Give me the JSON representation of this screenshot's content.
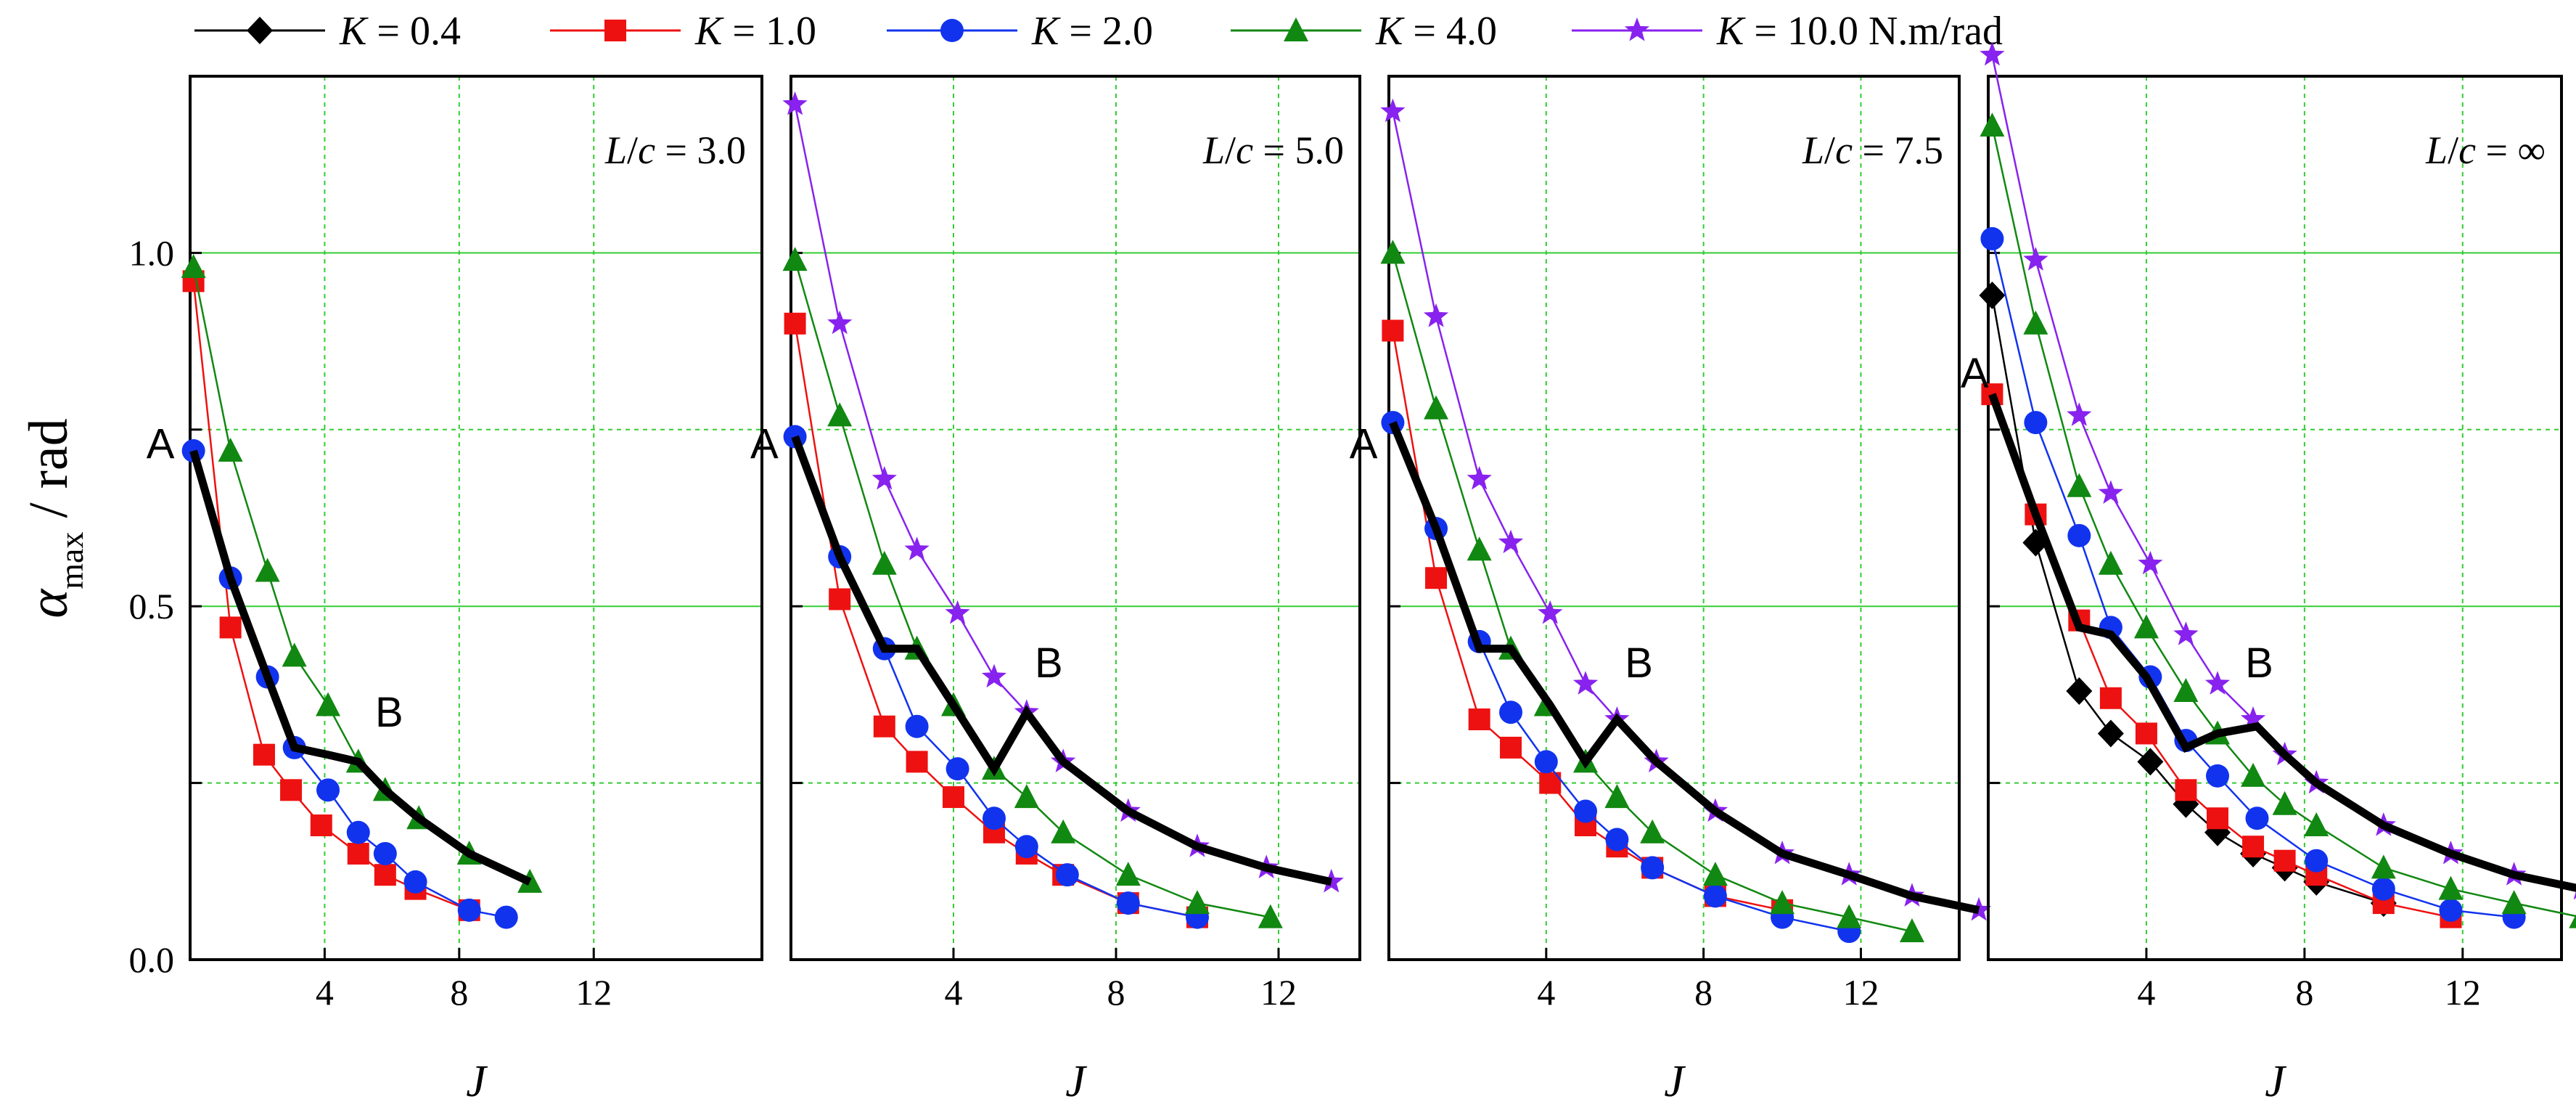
{
  "chart_data": {
    "type": "line",
    "ylabel": {
      "symbol": "α",
      "subscript": "max",
      "unit": " / rad"
    },
    "ylim": [
      0,
      1.25
    ],
    "yticks": [
      0.0,
      0.5,
      1.0
    ],
    "grid": true,
    "legend_position": "top",
    "legend": [
      {
        "series": "K0.4",
        "label": "K = 0.4",
        "color": "#000000",
        "marker": "diamond"
      },
      {
        "series": "K1.0",
        "label": "K = 1.0",
        "color": "#ee1111",
        "marker": "square"
      },
      {
        "series": "K2.0",
        "label": "K = 2.0",
        "color": "#1133ee",
        "marker": "circle"
      },
      {
        "series": "K4.0",
        "label": "K = 4.0",
        "color": "#118811",
        "marker": "triangle"
      },
      {
        "series": "K10.0",
        "label": "K = 10.0 N.m/rad",
        "color": "#8822ee",
        "marker": "star"
      }
    ],
    "panels": [
      {
        "annotation": "L/c = 3.0",
        "xlabel": "J",
        "xlim": [
          0,
          17
        ],
        "xticks": [
          4,
          8,
          12
        ],
        "series": [
          {
            "key": "K1.0",
            "x": [
              0.1,
              1.2,
              2.2,
              3.0,
              3.9,
              5.0,
              5.8,
              6.7,
              8.3
            ],
            "y": [
              0.96,
              0.47,
              0.29,
              0.24,
              0.19,
              0.15,
              0.12,
              0.1,
              0.07
            ]
          },
          {
            "key": "K2.0",
            "x": [
              0.1,
              1.2,
              2.3,
              3.1,
              4.1,
              5.0,
              5.8,
              6.7,
              8.3,
              9.4
            ],
            "y": [
              0.72,
              0.54,
              0.4,
              0.3,
              0.24,
              0.18,
              0.15,
              0.11,
              0.07,
              0.06
            ]
          },
          {
            "key": "K4.0",
            "x": [
              0.1,
              1.2,
              2.3,
              3.1,
              4.1,
              5.0,
              5.8,
              6.8,
              8.3,
              10.1
            ],
            "y": [
              0.98,
              0.72,
              0.55,
              0.43,
              0.36,
              0.28,
              0.24,
              0.2,
              0.15,
              0.11
            ]
          }
        ],
        "path": {
          "x": [
            0.1,
            1.2,
            2.3,
            3.1,
            4.1,
            5.0,
            5.8,
            6.8,
            8.3,
            10.1
          ],
          "y": [
            0.72,
            0.54,
            0.4,
            0.3,
            0.29,
            0.28,
            0.24,
            0.2,
            0.15,
            0.11
          ]
        },
        "point_labels": [
          {
            "text": "A",
            "x": -1.3,
            "y": 0.73
          },
          {
            "text": "B",
            "x": 5.5,
            "y": 0.35
          }
        ]
      },
      {
        "annotation": "L/c = 5.0",
        "xlabel": "J",
        "xlim": [
          0,
          14
        ],
        "xticks": [
          4,
          8,
          12
        ],
        "series": [
          {
            "key": "K1.0",
            "x": [
              0.1,
              1.2,
              2.3,
              3.1,
              4.0,
              5.0,
              5.8,
              6.7,
              8.3,
              10.0
            ],
            "y": [
              0.9,
              0.51,
              0.33,
              0.28,
              0.23,
              0.18,
              0.15,
              0.12,
              0.08,
              0.06
            ]
          },
          {
            "key": "K2.0",
            "x": [
              0.1,
              1.2,
              2.3,
              3.1,
              4.1,
              5.0,
              5.8,
              6.8,
              8.3,
              10.0
            ],
            "y": [
              0.74,
              0.57,
              0.44,
              0.33,
              0.27,
              0.2,
              0.16,
              0.12,
              0.08,
              0.06
            ]
          },
          {
            "key": "K4.0",
            "x": [
              0.1,
              1.2,
              2.3,
              3.1,
              4.0,
              5.0,
              5.8,
              6.7,
              8.3,
              10.0,
              11.8
            ],
            "y": [
              0.99,
              0.77,
              0.56,
              0.44,
              0.36,
              0.27,
              0.23,
              0.18,
              0.12,
              0.08,
              0.06
            ]
          },
          {
            "key": "K10.0",
            "x": [
              0.1,
              1.2,
              2.3,
              3.1,
              4.1,
              5.0,
              5.8,
              6.7,
              8.3,
              10.0,
              11.7,
              13.3
            ],
            "y": [
              1.21,
              0.9,
              0.68,
              0.58,
              0.49,
              0.4,
              0.35,
              0.28,
              0.21,
              0.16,
              0.13,
              0.11
            ]
          }
        ],
        "path": {
          "x": [
            0.1,
            1.2,
            2.3,
            3.1,
            4.0,
            5.0,
            5.8,
            6.7,
            8.3,
            10.0,
            11.7,
            13.3
          ],
          "y": [
            0.74,
            0.57,
            0.44,
            0.44,
            0.36,
            0.27,
            0.35,
            0.28,
            0.21,
            0.16,
            0.13,
            0.11
          ]
        },
        "point_labels": [
          {
            "text": "A",
            "x": -1.0,
            "y": 0.73
          },
          {
            "text": "B",
            "x": 6.0,
            "y": 0.42
          }
        ]
      },
      {
        "annotation": "L/c = 7.5",
        "xlabel": "J",
        "xlim": [
          0,
          14.5
        ],
        "xticks": [
          4,
          8,
          12
        ],
        "series": [
          {
            "key": "K1.0",
            "x": [
              0.1,
              1.2,
              2.3,
              3.1,
              4.1,
              5.0,
              5.8,
              6.7,
              8.3,
              10.0
            ],
            "y": [
              0.89,
              0.54,
              0.34,
              0.3,
              0.25,
              0.19,
              0.16,
              0.13,
              0.09,
              0.07
            ]
          },
          {
            "key": "K2.0",
            "x": [
              0.1,
              1.2,
              2.3,
              3.1,
              4.0,
              5.0,
              5.8,
              6.7,
              8.3,
              10.0,
              11.7
            ],
            "y": [
              0.76,
              0.61,
              0.45,
              0.35,
              0.28,
              0.21,
              0.17,
              0.13,
              0.09,
              0.06,
              0.04
            ]
          },
          {
            "key": "K4.0",
            "x": [
              0.1,
              1.2,
              2.3,
              3.1,
              4.0,
              5.0,
              5.8,
              6.7,
              8.3,
              10.0,
              11.7,
              13.3
            ],
            "y": [
              1.0,
              0.78,
              0.58,
              0.44,
              0.36,
              0.28,
              0.23,
              0.18,
              0.12,
              0.08,
              0.06,
              0.04
            ]
          },
          {
            "key": "K10.0",
            "x": [
              0.1,
              1.2,
              2.3,
              3.1,
              4.1,
              5.0,
              5.8,
              6.8,
              8.3,
              10.0,
              11.7,
              13.3,
              15.0
            ],
            "y": [
              1.2,
              0.91,
              0.68,
              0.59,
              0.49,
              0.39,
              0.34,
              0.28,
              0.21,
              0.15,
              0.12,
              0.09,
              0.07
            ]
          }
        ],
        "path": {
          "x": [
            0.1,
            1.2,
            2.3,
            3.1,
            4.1,
            5.0,
            5.8,
            6.8,
            8.3,
            10.0,
            11.7,
            13.3,
            15.0
          ],
          "y": [
            0.76,
            0.61,
            0.44,
            0.44,
            0.36,
            0.28,
            0.34,
            0.28,
            0.21,
            0.15,
            0.12,
            0.09,
            0.07
          ]
        },
        "point_labels": [
          {
            "text": "A",
            "x": -1.0,
            "y": 0.73
          },
          {
            "text": "B",
            "x": 6.0,
            "y": 0.42
          }
        ]
      },
      {
        "annotation": "L/c = ∞",
        "xlabel": "J",
        "xlim": [
          0,
          14.5
        ],
        "xticks": [
          4,
          8,
          12
        ],
        "series": [
          {
            "key": "K0.4",
            "x": [
              0.1,
              1.2,
              2.3,
              3.1,
              4.1,
              5.0,
              5.8,
              6.7,
              7.5,
              8.3,
              10.0
            ],
            "y": [
              0.94,
              0.59,
              0.38,
              0.32,
              0.28,
              0.22,
              0.18,
              0.15,
              0.13,
              0.11,
              0.08
            ]
          },
          {
            "key": "K1.0",
            "x": [
              0.1,
              1.2,
              2.3,
              3.1,
              4.0,
              5.0,
              5.8,
              6.7,
              7.5,
              8.3,
              10.0,
              11.7
            ],
            "y": [
              0.8,
              0.63,
              0.48,
              0.37,
              0.32,
              0.24,
              0.2,
              0.16,
              0.14,
              0.12,
              0.08,
              0.06
            ]
          },
          {
            "key": "K2.0",
            "x": [
              0.1,
              1.2,
              2.3,
              3.1,
              4.1,
              5.0,
              5.8,
              6.8,
              8.3,
              10.0,
              11.7,
              13.3
            ],
            "y": [
              1.02,
              0.76,
              0.6,
              0.47,
              0.4,
              0.31,
              0.26,
              0.2,
              0.14,
              0.1,
              0.07,
              0.06
            ]
          },
          {
            "key": "K4.0",
            "x": [
              0.1,
              1.2,
              2.3,
              3.1,
              4.0,
              5.0,
              5.8,
              6.7,
              7.5,
              8.3,
              10.0,
              11.7,
              13.3,
              15.0
            ],
            "y": [
              1.18,
              0.9,
              0.67,
              0.56,
              0.47,
              0.38,
              0.32,
              0.26,
              0.22,
              0.19,
              0.13,
              0.1,
              0.08,
              0.06
            ]
          },
          {
            "key": "K10.0",
            "x": [
              0.1,
              1.2,
              2.3,
              3.1,
              4.1,
              5.0,
              5.8,
              6.7,
              7.5,
              8.3,
              10.0,
              11.7,
              13.3,
              15.0
            ],
            "y": [
              1.28,
              0.99,
              0.77,
              0.66,
              0.56,
              0.46,
              0.39,
              0.34,
              0.29,
              0.25,
              0.19,
              0.15,
              0.12,
              0.1
            ]
          }
        ],
        "path": {
          "x": [
            0.1,
            1.2,
            2.3,
            3.1,
            4.0,
            5.0,
            5.8,
            6.8,
            7.5,
            8.3,
            10.0,
            11.7,
            13.3,
            15.0
          ],
          "y": [
            0.8,
            0.63,
            0.47,
            0.46,
            0.4,
            0.3,
            0.32,
            0.33,
            0.29,
            0.25,
            0.19,
            0.15,
            0.12,
            0.1
          ]
        },
        "point_labels": [
          {
            "text": "A",
            "x": -0.7,
            "y": 0.83
          },
          {
            "text": "B",
            "x": 6.5,
            "y": 0.42
          }
        ]
      }
    ]
  }
}
